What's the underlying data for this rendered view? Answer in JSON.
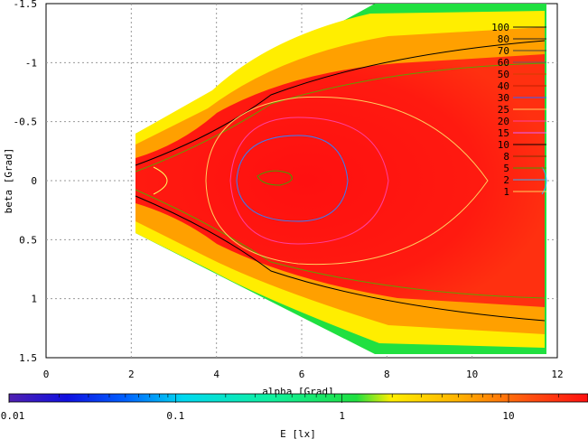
{
  "chart_data": {
    "type": "heatmap",
    "title": "",
    "xlabel": "alpha [Grad]",
    "ylabel": "beta [Grad]",
    "xlim": [
      0,
      12
    ],
    "ylim": [
      1.5,
      -1.5
    ],
    "x_ticks": [
      "0",
      "2",
      "4",
      "6",
      "8",
      "10",
      "12"
    ],
    "y_ticks": [
      "-1.5",
      "-1",
      "-0.5",
      "0",
      "0.5",
      "1",
      "1.5"
    ],
    "grid": true,
    "contour_levels": [
      "100",
      "80",
      "70",
      "60",
      "50",
      "40",
      "30",
      "25",
      "20",
      "15",
      "10",
      "8",
      "5",
      "2",
      "1"
    ],
    "colorbar": {
      "label": "E [lx]",
      "scale": "log",
      "range": [
        0.01,
        30
      ],
      "ticks": [
        "0.01",
        "0.1",
        "1",
        "10"
      ]
    },
    "colors": {
      "low": "#4020c0",
      "mid": "#20e040",
      "high": "#ff1010",
      "yellow": "#ffee00"
    }
  }
}
